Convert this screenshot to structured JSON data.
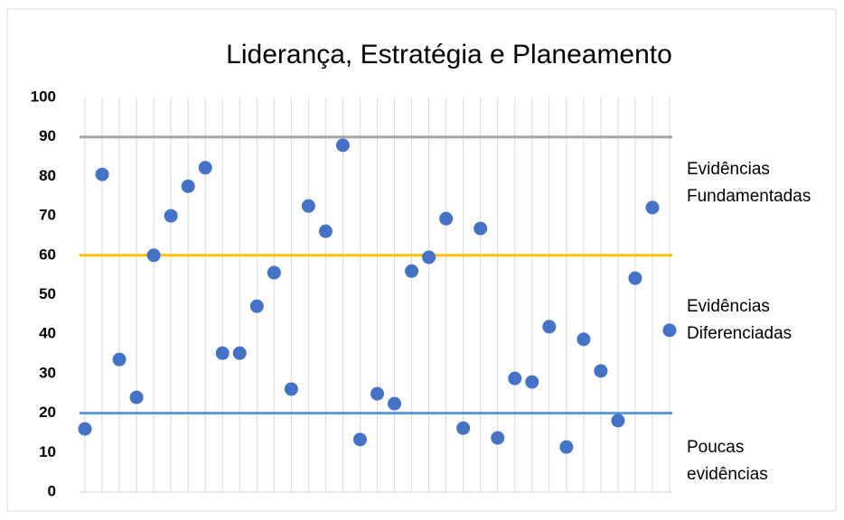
{
  "chart_data": {
    "type": "scatter",
    "title": "Liderança, Estratégia e Planeamento",
    "x": [
      1,
      2,
      3,
      4,
      5,
      6,
      7,
      8,
      9,
      10,
      11,
      12,
      13,
      14,
      15,
      16,
      17,
      18,
      19,
      20,
      21,
      22,
      23,
      24,
      25,
      26,
      27,
      28,
      29,
      30,
      31,
      32,
      33,
      34,
      35
    ],
    "values": [
      16,
      80.5,
      33.6,
      24,
      60,
      70,
      77.5,
      82.2,
      35.2,
      35.2,
      47.1,
      55.6,
      26.1,
      72.5,
      66.1,
      87.9,
      13.3,
      24.9,
      22.4,
      56,
      59.5,
      69.3,
      16.2,
      66.8,
      13.7,
      28.8,
      27.9,
      41.9,
      11.4,
      38.7,
      30.7,
      18.1,
      54.2,
      72.1,
      41
    ],
    "color": "#4472c4",
    "xlim": [
      1,
      35
    ],
    "ylim": [
      0,
      100
    ],
    "yticks": [
      0,
      10,
      20,
      30,
      40,
      50,
      60,
      70,
      80,
      90,
      100
    ],
    "reference_lines": [
      {
        "value": 90,
        "color": "#a5a5a5"
      },
      {
        "value": 60,
        "color": "#ffc000"
      },
      {
        "value": 20,
        "color": "#5b9bd5"
      }
    ],
    "annotations": [
      [
        "Evidências",
        "Fundamentadas"
      ],
      [
        "Evidências",
        "Diferenciadas"
      ],
      [
        "Poucas",
        "evidências"
      ]
    ]
  }
}
